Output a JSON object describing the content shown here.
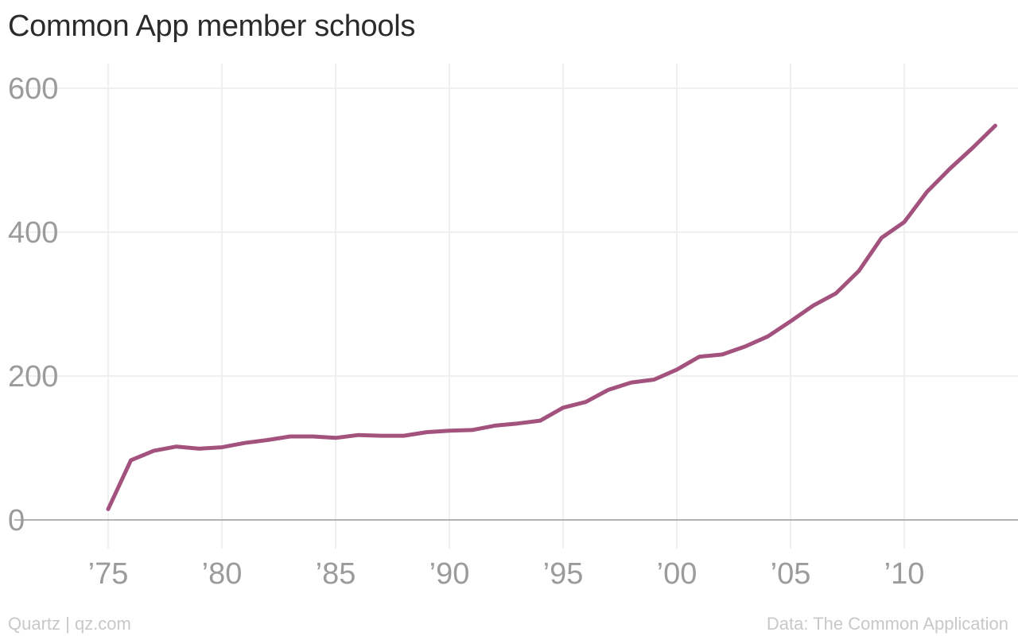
{
  "chart_data": {
    "type": "line",
    "title": "Common App member schools",
    "xlabel": "",
    "ylabel": "",
    "xlim": [
      1972,
      2016
    ],
    "ylim": [
      0,
      600
    ],
    "grid": true,
    "legend": "none",
    "x_ticks": [
      1975,
      1980,
      1985,
      1990,
      1995,
      2000,
      2005,
      2010
    ],
    "x_tick_labels": [
      "’75",
      "’80",
      "’85",
      "’90",
      "’95",
      "’00",
      "’05",
      "’10"
    ],
    "y_ticks": [
      0,
      200,
      400,
      600
    ],
    "y_tick_labels": [
      "0",
      "200",
      "400",
      "600"
    ],
    "series": [
      {
        "color": "#a3527e",
        "x": [
          1975,
          1976,
          1977,
          1978,
          1979,
          1980,
          1981,
          1982,
          1983,
          1984,
          1985,
          1986,
          1987,
          1988,
          1989,
          1990,
          1991,
          1992,
          1993,
          1994,
          1995,
          1996,
          1997,
          1998,
          1999,
          2000,
          2001,
          2002,
          2003,
          2004,
          2005,
          2006,
          2007,
          2008,
          2009,
          2010,
          2011,
          2012,
          2013,
          2014
        ],
        "values": [
          15,
          83,
          96,
          102,
          99,
          101,
          107,
          111,
          116,
          116,
          114,
          118,
          117,
          117,
          122,
          124,
          125,
          131,
          134,
          138,
          156,
          164,
          181,
          191,
          195,
          209,
          227,
          230,
          241,
          255,
          276,
          298,
          315,
          346,
          392,
          414,
          456,
          488,
          517,
          548
        ]
      }
    ]
  },
  "footer": {
    "source_left": "Quartz | qz.com",
    "source_right": "Data: The Common Application"
  },
  "colors": {
    "line": "#a3527e",
    "grid": "#ececec",
    "zero_axis": "#9a9a9a",
    "tick_label": "#9b9b9b",
    "title": "#2b2b2b",
    "footer": "#c8c8c8"
  }
}
